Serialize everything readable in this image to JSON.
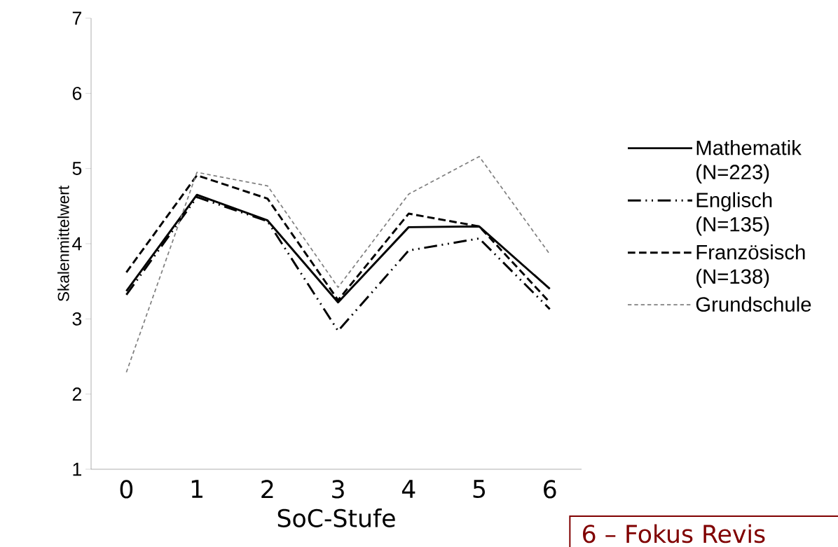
{
  "chart_data": {
    "type": "line",
    "xlabel": "SoC-Stufe",
    "ylabel": "Skalenmittelwert",
    "categories": [
      "0",
      "1",
      "2",
      "3",
      "4",
      "5",
      "6"
    ],
    "ylim": [
      1,
      7
    ],
    "yticks": [
      1,
      2,
      3,
      4,
      5,
      6,
      7
    ],
    "grid": false,
    "legend": "right",
    "marker": "none",
    "series": [
      {
        "name": "Mathematik (N=223)",
        "color": "#000000",
        "line_style": "solid",
        "values": [
          3.37,
          4.65,
          4.31,
          3.22,
          4.22,
          4.23,
          3.4
        ]
      },
      {
        "name": "Englisch (N=135)",
        "color": "#000000",
        "line_style": "dashdotdot",
        "values": [
          3.32,
          4.62,
          4.3,
          2.84,
          3.91,
          4.07,
          3.13
        ]
      },
      {
        "name": "Französisch (N=138)",
        "color": "#000000",
        "line_style": "dashed",
        "values": [
          3.62,
          4.91,
          4.6,
          3.25,
          4.4,
          4.23,
          3.22
        ]
      },
      {
        "name": "Grundschule",
        "color": "#808080",
        "line_style": "dashed",
        "values": [
          2.29,
          4.95,
          4.77,
          3.42,
          4.66,
          5.16,
          3.86
        ]
      }
    ],
    "annotations": [
      "6 – Fokus Revis"
    ]
  }
}
